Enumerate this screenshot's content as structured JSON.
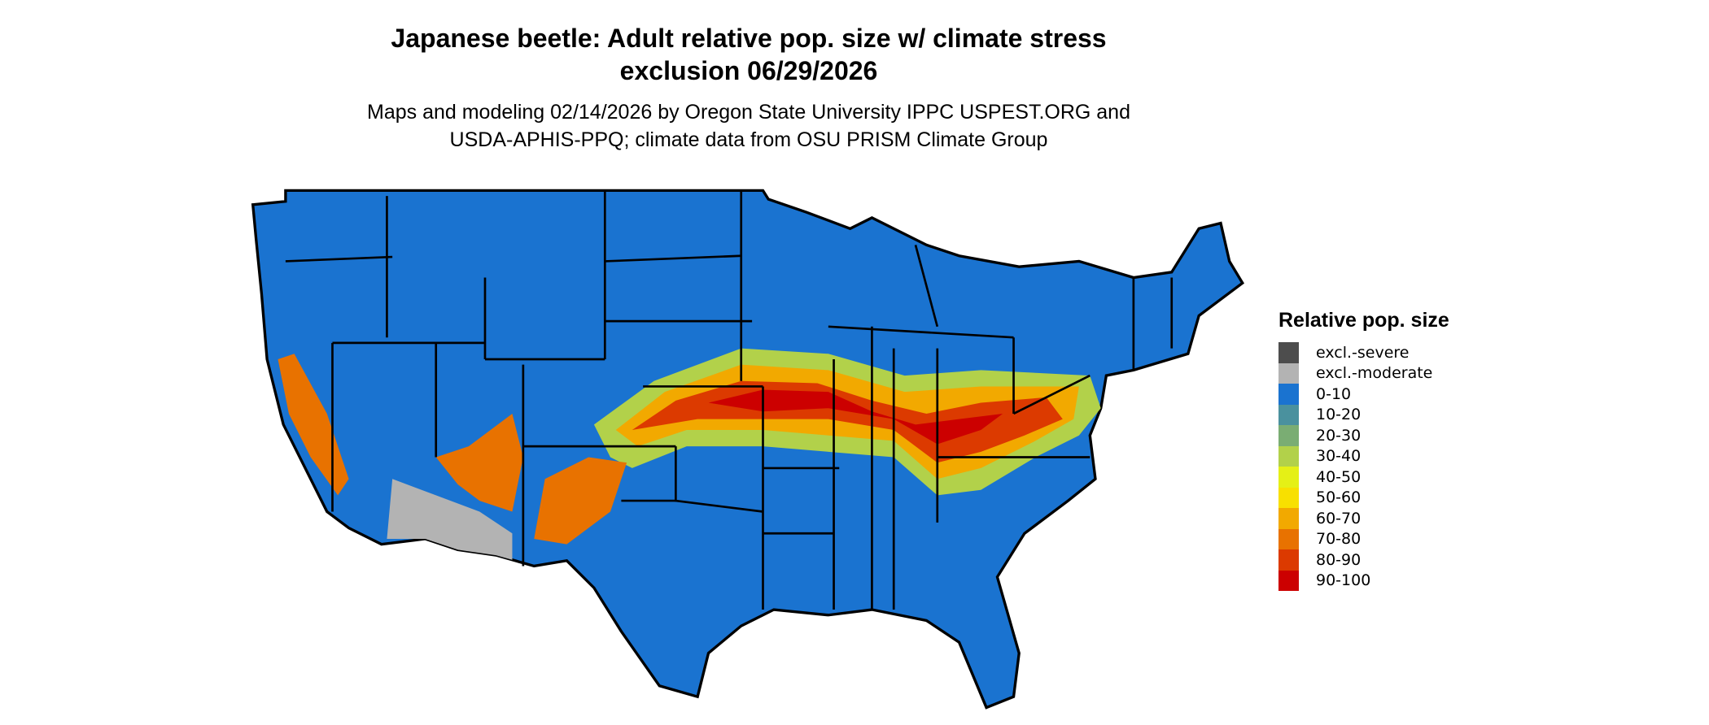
{
  "title": {
    "line1": "Japanese beetle: Adult relative pop. size w/ climate stress",
    "line2": "exclusion 06/29/2026"
  },
  "subtitle": {
    "line1": "Maps and modeling 02/14/2026 by Oregon State University IPPC USPEST.ORG and",
    "line2": "USDA-APHIS-PPQ; climate data from OSU PRISM Climate Group"
  },
  "chart_data": {
    "type": "heatmap",
    "region": "Contiguous United States",
    "legend": {
      "title": "Relative pop. size",
      "placement": "right",
      "items": [
        {
          "label": "excl.-severe",
          "color": "#4d4d4d"
        },
        {
          "label": "excl.-moderate",
          "color": "#b3b3b3"
        },
        {
          "label": "0-10",
          "color": "#1a73d0"
        },
        {
          "label": "10-20",
          "color": "#4a919e"
        },
        {
          "label": "20-30",
          "color": "#7aad73"
        },
        {
          "label": "30-40",
          "color": "#b2d14a"
        },
        {
          "label": "40-50",
          "color": "#e5f016"
        },
        {
          "label": "50-60",
          "color": "#f8e000"
        },
        {
          "label": "60-70",
          "color": "#f2a900"
        },
        {
          "label": "70-80",
          "color": "#e87200"
        },
        {
          "label": "80-90",
          "color": "#dc3a00"
        },
        {
          "label": "90-100",
          "color": "#cc0000"
        }
      ]
    }
  }
}
